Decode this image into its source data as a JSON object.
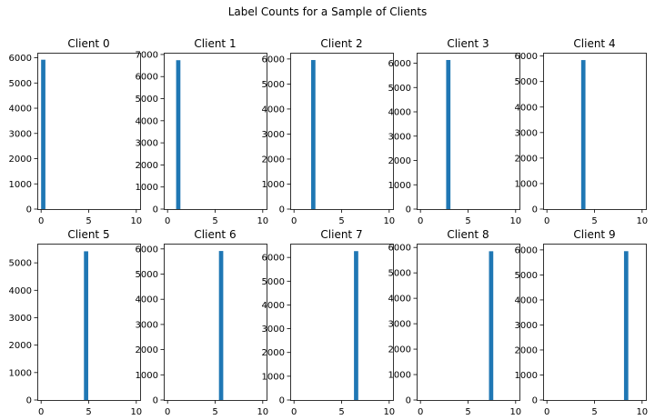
{
  "title": "Label Counts for a Sample of Clients",
  "colors": {
    "bar": "#1f77b4",
    "axis": "#000000",
    "background": "#ffffff"
  },
  "chart_data": [
    {
      "type": "bar",
      "title": "Client 0",
      "xlim": [
        0,
        10
      ],
      "ylim": [
        0,
        6200
      ],
      "xticks": [
        0,
        5,
        10
      ],
      "yticks": [
        0,
        1000,
        2000,
        3000,
        4000,
        5000,
        6000
      ],
      "bars": [
        {
          "x0": 0.0,
          "x1": 0.45,
          "value": 5923
        }
      ]
    },
    {
      "type": "bar",
      "title": "Client 1",
      "xlim": [
        0,
        10
      ],
      "ylim": [
        0,
        7080
      ],
      "xticks": [
        0,
        5,
        10
      ],
      "yticks": [
        0,
        1000,
        2000,
        3000,
        4000,
        5000,
        6000,
        7000
      ],
      "bars": [
        {
          "x0": 0.9,
          "x1": 1.35,
          "value": 6742
        }
      ]
    },
    {
      "type": "bar",
      "title": "Client 2",
      "xlim": [
        0,
        10
      ],
      "ylim": [
        0,
        6250
      ],
      "xticks": [
        0,
        5,
        10
      ],
      "yticks": [
        0,
        1000,
        2000,
        3000,
        4000,
        5000,
        6000
      ],
      "bars": [
        {
          "x0": 1.8,
          "x1": 2.25,
          "value": 5958
        }
      ]
    },
    {
      "type": "bar",
      "title": "Client 3",
      "xlim": [
        0,
        10
      ],
      "ylim": [
        0,
        6430
      ],
      "xticks": [
        0,
        5,
        10
      ],
      "yticks": [
        0,
        1000,
        2000,
        3000,
        4000,
        5000,
        6000
      ],
      "bars": [
        {
          "x0": 2.7,
          "x1": 3.15,
          "value": 6131
        }
      ]
    },
    {
      "type": "bar",
      "title": "Client 4",
      "xlim": [
        0,
        10
      ],
      "ylim": [
        0,
        6130
      ],
      "xticks": [
        0,
        5,
        10
      ],
      "yticks": [
        0,
        1000,
        2000,
        3000,
        4000,
        5000,
        6000
      ],
      "bars": [
        {
          "x0": 3.6,
          "x1": 4.05,
          "value": 5842
        }
      ]
    },
    {
      "type": "bar",
      "title": "Client 5",
      "xlim": [
        0,
        10
      ],
      "ylim": [
        0,
        5700
      ],
      "xticks": [
        0,
        5,
        10
      ],
      "yticks": [
        0,
        1000,
        2000,
        3000,
        4000,
        5000
      ],
      "bars": [
        {
          "x0": 4.5,
          "x1": 4.95,
          "value": 5421
        }
      ]
    },
    {
      "type": "bar",
      "title": "Client 6",
      "xlim": [
        0,
        10
      ],
      "ylim": [
        0,
        6210
      ],
      "xticks": [
        0,
        5,
        10
      ],
      "yticks": [
        0,
        1000,
        2000,
        3000,
        4000,
        5000,
        6000
      ],
      "bars": [
        {
          "x0": 5.4,
          "x1": 5.85,
          "value": 5918
        }
      ]
    },
    {
      "type": "bar",
      "title": "Client 7",
      "xlim": [
        0,
        10
      ],
      "ylim": [
        0,
        6580
      ],
      "xticks": [
        0,
        5,
        10
      ],
      "yticks": [
        0,
        1000,
        2000,
        3000,
        4000,
        5000,
        6000
      ],
      "bars": [
        {
          "x0": 6.3,
          "x1": 6.75,
          "value": 6265
        }
      ]
    },
    {
      "type": "bar",
      "title": "Client 8",
      "xlim": [
        0,
        10
      ],
      "ylim": [
        0,
        6150
      ],
      "xticks": [
        0,
        5,
        10
      ],
      "yticks": [
        0,
        1000,
        2000,
        3000,
        4000,
        5000,
        6000
      ],
      "bars": [
        {
          "x0": 7.2,
          "x1": 7.65,
          "value": 5851
        }
      ]
    },
    {
      "type": "bar",
      "title": "Client 9",
      "xlim": [
        0,
        10
      ],
      "ylim": [
        0,
        6250
      ],
      "xticks": [
        0,
        5,
        10
      ],
      "yticks": [
        0,
        1000,
        2000,
        3000,
        4000,
        5000,
        6000
      ],
      "bars": [
        {
          "x0": 8.1,
          "x1": 8.55,
          "value": 5949
        }
      ]
    }
  ]
}
